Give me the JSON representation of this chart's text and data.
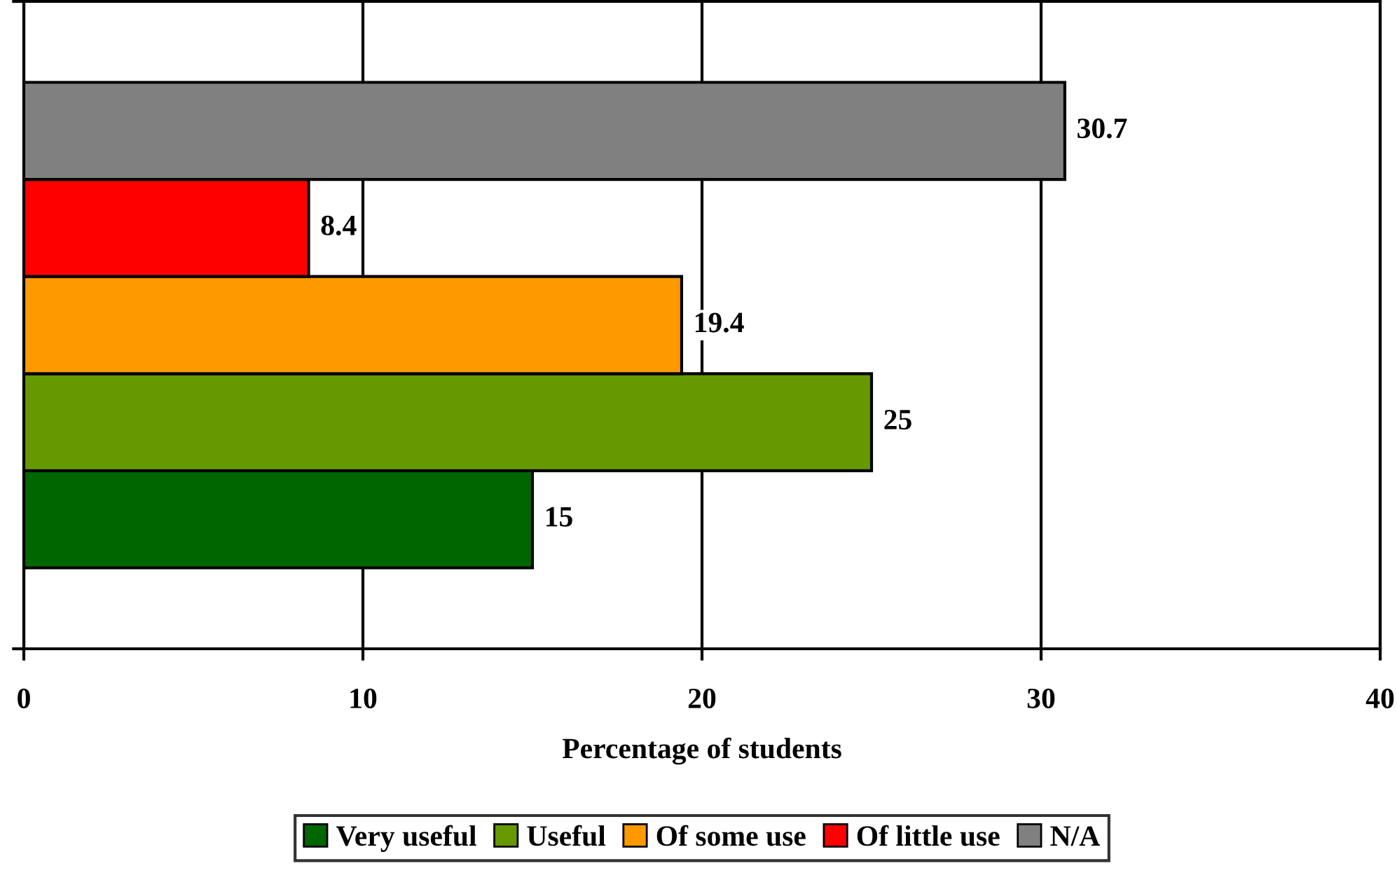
{
  "chart_data": {
    "type": "bar",
    "orientation": "horizontal",
    "xlabel": "Percentage of students",
    "categories": [
      null
    ],
    "series": [
      {
        "name": "Very useful",
        "color": "#006600",
        "values": [
          15
        ]
      },
      {
        "name": "Useful",
        "color": "#669900",
        "values": [
          25
        ]
      },
      {
        "name": "Of some use",
        "color": "#ff9900",
        "values": [
          19.4
        ]
      },
      {
        "name": "Of little use",
        "color": "#ff0000",
        "values": [
          8.4
        ]
      },
      {
        "name": "N/A",
        "color": "#808080",
        "values": [
          30.7
        ]
      }
    ],
    "xlim": [
      0,
      40
    ],
    "xticks": [
      0,
      10,
      20,
      30,
      40
    ],
    "grid": "x",
    "legend": "bottom",
    "data_labels": true
  }
}
